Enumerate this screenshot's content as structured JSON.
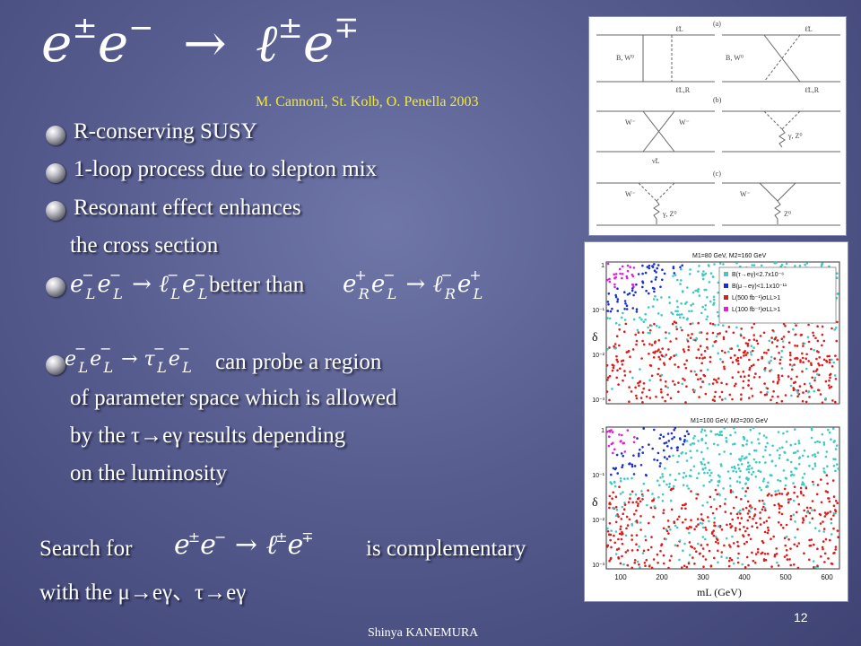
{
  "title": {
    "base1": "e",
    "sup1": "±",
    "base2": "e",
    "sup2": "−",
    "arrow": "→",
    "base3": "ℓ",
    "sup3": "±",
    "base4": "e",
    "sup4": "∓"
  },
  "citation": "M. Cannoni, St. Kolb, O. Penella 2003",
  "bullets": [
    {
      "text": "R-conserving SUSY"
    },
    {
      "text": "1-loop process due to slepton mix"
    },
    {
      "text": "Resonant effect enhances",
      "cont": "the cross section"
    },
    {
      "between": "better than"
    },
    {
      "text": "can probe a region",
      "cont1": "of parameter space which is allowed",
      "cont2": "by  the τ→eγ results depending",
      "cont3": "on the luminosity"
    }
  ],
  "search": {
    "prefix": "Search for",
    "suffix": "is complementary",
    "line2": "with the μ→eγ、τ→eγ"
  },
  "footer": "Shinya KANEMURA",
  "page_number": "12",
  "diagram": {
    "panel_labels": [
      "(a)",
      "(b)",
      "(c)"
    ],
    "labels": [
      "B, W⁰",
      "ℓ̃L",
      "ℓ̃L,R",
      "W⁻",
      "ν̃L",
      "γ, Z⁰",
      "Z⁰"
    ]
  },
  "plots": {
    "top_title": "M1=80 GeV, M2=160 GeV",
    "bottom_title": "M1=100 GeV, M2=200 GeV",
    "ylabel": "δ",
    "xlabel": "mL (GeV)",
    "x_ticks": [
      "100",
      "200",
      "300",
      "400",
      "500",
      "600"
    ],
    "y_ticks": [
      "1",
      "10⁻¹",
      "10⁻²",
      "10⁻³"
    ],
    "legend": [
      "B(τ→eγ)<2.7x10⁻⁶",
      "B(μ→eγ)<1.1x10⁻¹¹",
      "L(500 fb⁻¹)σLL>1",
      "L(100 fb⁻¹)σLL>1"
    ],
    "colors": {
      "magenta": "#e020d8",
      "blue": "#1a2fd0",
      "cyan": "#3ec9c4",
      "red": "#e01a1a"
    }
  }
}
